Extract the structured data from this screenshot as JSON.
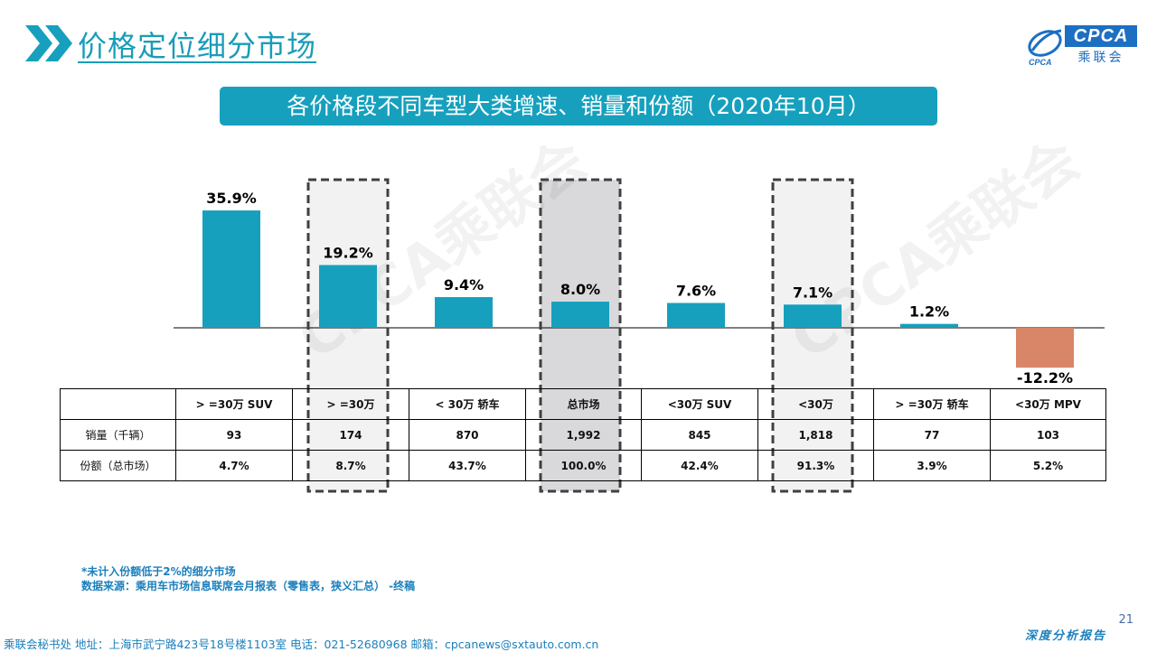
{
  "header": {
    "title": "价格定位细分市场",
    "logo_text": "CPCA",
    "logo_sub": "乘联会",
    "logo_tag": "CPCA"
  },
  "banner": {
    "text": "各价格段不同车型大类增速、销量和份额（2020年10月）"
  },
  "watermark": "CPCA乘联会",
  "chart_data": {
    "type": "bar",
    "categories": [
      ">=30万 SUV",
      ">=30万",
      "<30万 轿车",
      "总市场",
      "<30万 SUV",
      "<30万",
      ">=30万 轿车",
      "<30万 MPV"
    ],
    "values": [
      35.9,
      19.2,
      9.4,
      8.0,
      7.6,
      7.1,
      1.2,
      -12.2
    ],
    "value_labels": [
      "35.9%",
      "19.2%",
      "9.4%",
      "8.0%",
      "7.6%",
      "7.1%",
      "1.2%",
      "-12.2%"
    ],
    "highlighted_categories": [
      ">=30万",
      "总市场",
      "<30万"
    ],
    "colors": {
      "positive": "#16a0bd",
      "negative": "#d98567",
      "highlight_box": "#f2f2f2",
      "total_box": "#d9d9dc"
    },
    "ylim": [
      -12.2,
      35.9
    ]
  },
  "table": {
    "headers": [
      "",
      "> =30万 SUV",
      "> =30万",
      "< 30万 轿车",
      "总市场",
      "<30万 SUV",
      "<30万",
      "> =30万 轿车",
      "<30万 MPV"
    ],
    "rows": [
      {
        "label": "销量（千辆）",
        "cells": [
          "93",
          "174",
          "870",
          "1,992",
          "845",
          "1,818",
          "77",
          "103"
        ]
      },
      {
        "label": "份额（总市场）",
        "cells": [
          "4.7%",
          "8.7%",
          "43.7%",
          "100.0%",
          "42.4%",
          "91.3%",
          "3.9%",
          "5.2%"
        ]
      }
    ]
  },
  "notes": {
    "line1": "*未计入份额低于2%的细分市场",
    "line2": "数据来源：乘用车市场信息联席会月报表（零售表，狭义汇总） -终稿"
  },
  "footer": {
    "text": "乘联会秘书处   地址：上海市武宁路423号18号楼1103室  电话：021-52680968   邮箱：cpcanews@sxtauto.com.cn",
    "right": "深度分析报告",
    "page_number": "21"
  }
}
